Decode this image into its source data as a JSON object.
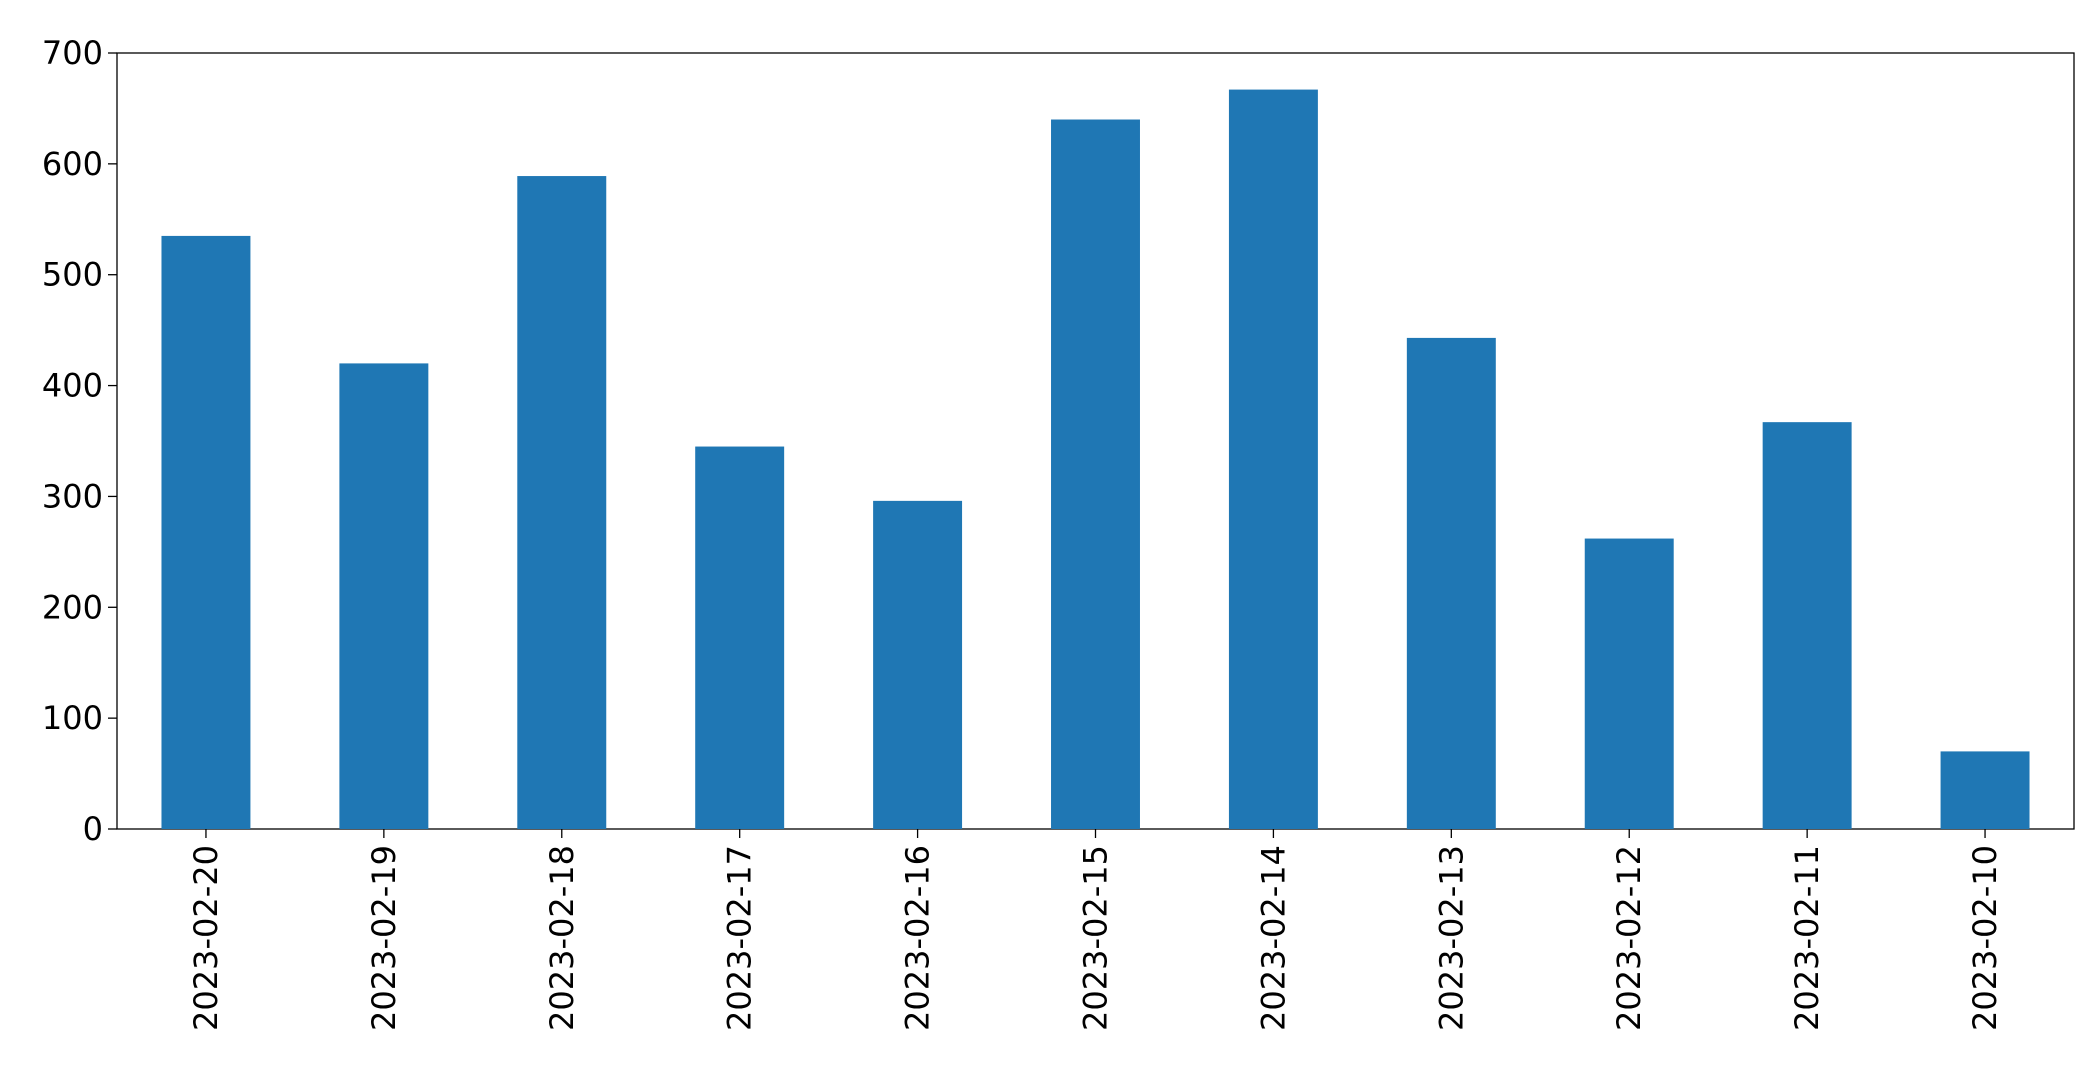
{
  "chart_data": {
    "type": "bar",
    "categories": [
      "2023-02-20",
      "2023-02-19",
      "2023-02-18",
      "2023-02-17",
      "2023-02-16",
      "2023-02-15",
      "2023-02-14",
      "2023-02-13",
      "2023-02-12",
      "2023-02-11",
      "2023-02-10"
    ],
    "values": [
      535,
      420,
      589,
      345,
      296,
      640,
      667,
      443,
      262,
      367,
      70
    ],
    "color": "#1f77b4",
    "ylim": [
      0,
      700
    ],
    "yticks": [
      0,
      100,
      200,
      300,
      400,
      500,
      600,
      700
    ],
    "grid": false
  }
}
